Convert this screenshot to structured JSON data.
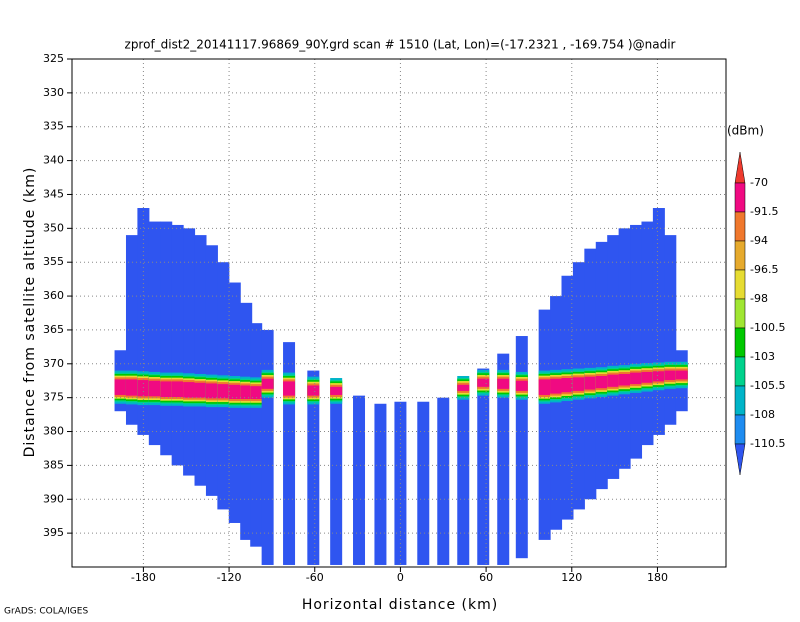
{
  "chart_data": {
    "type": "profile",
    "title": "zprof_dist2_20141117.96869_90Y.grd   scan # 1510   (Lat, Lon)=(-17.2321 , -169.754 )@nadir",
    "x_label": "Horizontal distance (km)",
    "y_label": "Distance from satellite altitude (km)",
    "credit": "GrADS: COLA/IGES",
    "xlim": [
      -230,
      228
    ],
    "ylim": [
      325,
      400
    ],
    "y_inverted": true,
    "xticks": [
      -180,
      -120,
      -60,
      0,
      60,
      120,
      180
    ],
    "yticks": [
      325,
      330,
      335,
      340,
      345,
      350,
      355,
      360,
      365,
      370,
      375,
      380,
      385,
      390,
      395
    ],
    "grid": true,
    "colorbar": {
      "unit": "(dBm)",
      "levels": [
        -70,
        -91.5,
        -94,
        -96.5,
        -98,
        -100.5,
        -103,
        -105.5,
        -108,
        -110.5
      ],
      "colors": [
        "#ee3a2e",
        "#f00a82",
        "#f0782d",
        "#e6aa2d",
        "#e6dc32",
        "#a0e632",
        "#00c800",
        "#00d28c",
        "#00b4c8",
        "#1e8cf0",
        "#2f55f0"
      ]
    },
    "field": {
      "column_width": 8.4,
      "x": [
        -196,
        -188,
        -180,
        -172,
        -164,
        -156,
        -148,
        -140,
        -132,
        -124,
        -116,
        -108,
        -101,
        -93,
        -78,
        -61,
        -45,
        -29,
        -14,
        0,
        16,
        30,
        44,
        58,
        72,
        85,
        101,
        109,
        117,
        125,
        133,
        141,
        149,
        157,
        165,
        173,
        181,
        189,
        197
      ],
      "top": [
        368,
        351,
        347,
        349,
        349,
        349.5,
        350,
        351,
        352.5,
        355,
        358,
        361,
        364,
        365,
        366.8,
        371,
        373,
        374.7,
        375.9,
        375.6,
        375.6,
        375,
        373,
        370.7,
        368.5,
        365.9,
        362,
        360,
        357,
        355,
        353,
        352,
        351,
        350,
        349.5,
        349,
        347,
        351,
        368
      ],
      "bottom": [
        377,
        379,
        380.5,
        382,
        383.5,
        385,
        386.5,
        388,
        389.5,
        391.5,
        393.5,
        396,
        397,
        399.7,
        399.7,
        399.7,
        399.7,
        399.7,
        399.7,
        399.7,
        399.7,
        399.7,
        399.7,
        399.7,
        399.7,
        398.7,
        396,
        394.5,
        393,
        391.5,
        390,
        388.5,
        387,
        385.5,
        384,
        382,
        380.5,
        379,
        377
      ],
      "echo_top": [
        372.3,
        372.3,
        372.4,
        372.5,
        372.6,
        372.6,
        372.7,
        372.8,
        372.9,
        373,
        373.1,
        373.2,
        373.3,
        372.2,
        372.6,
        373.2,
        373.4,
        null,
        null,
        null,
        null,
        null,
        373.1,
        372.2,
        372.2,
        372.5,
        372.3,
        372.2,
        372.1,
        372,
        371.9,
        371.8,
        371.6,
        371.5,
        371.3,
        371.2,
        371.1,
        371,
        371
      ],
      "echo_bottom": [
        374.6,
        374.7,
        374.8,
        374.8,
        374.9,
        374.9,
        375,
        375,
        375.1,
        375.1,
        375.2,
        375.2,
        375.2,
        373.7,
        374.7,
        374.7,
        374.6,
        null,
        null,
        null,
        null,
        null,
        374,
        373.4,
        373.7,
        374,
        374.6,
        374.4,
        374.2,
        374,
        373.8,
        373.6,
        373.4,
        373.2,
        373,
        372.8,
        372.6,
        372.4,
        372.3
      ]
    }
  }
}
